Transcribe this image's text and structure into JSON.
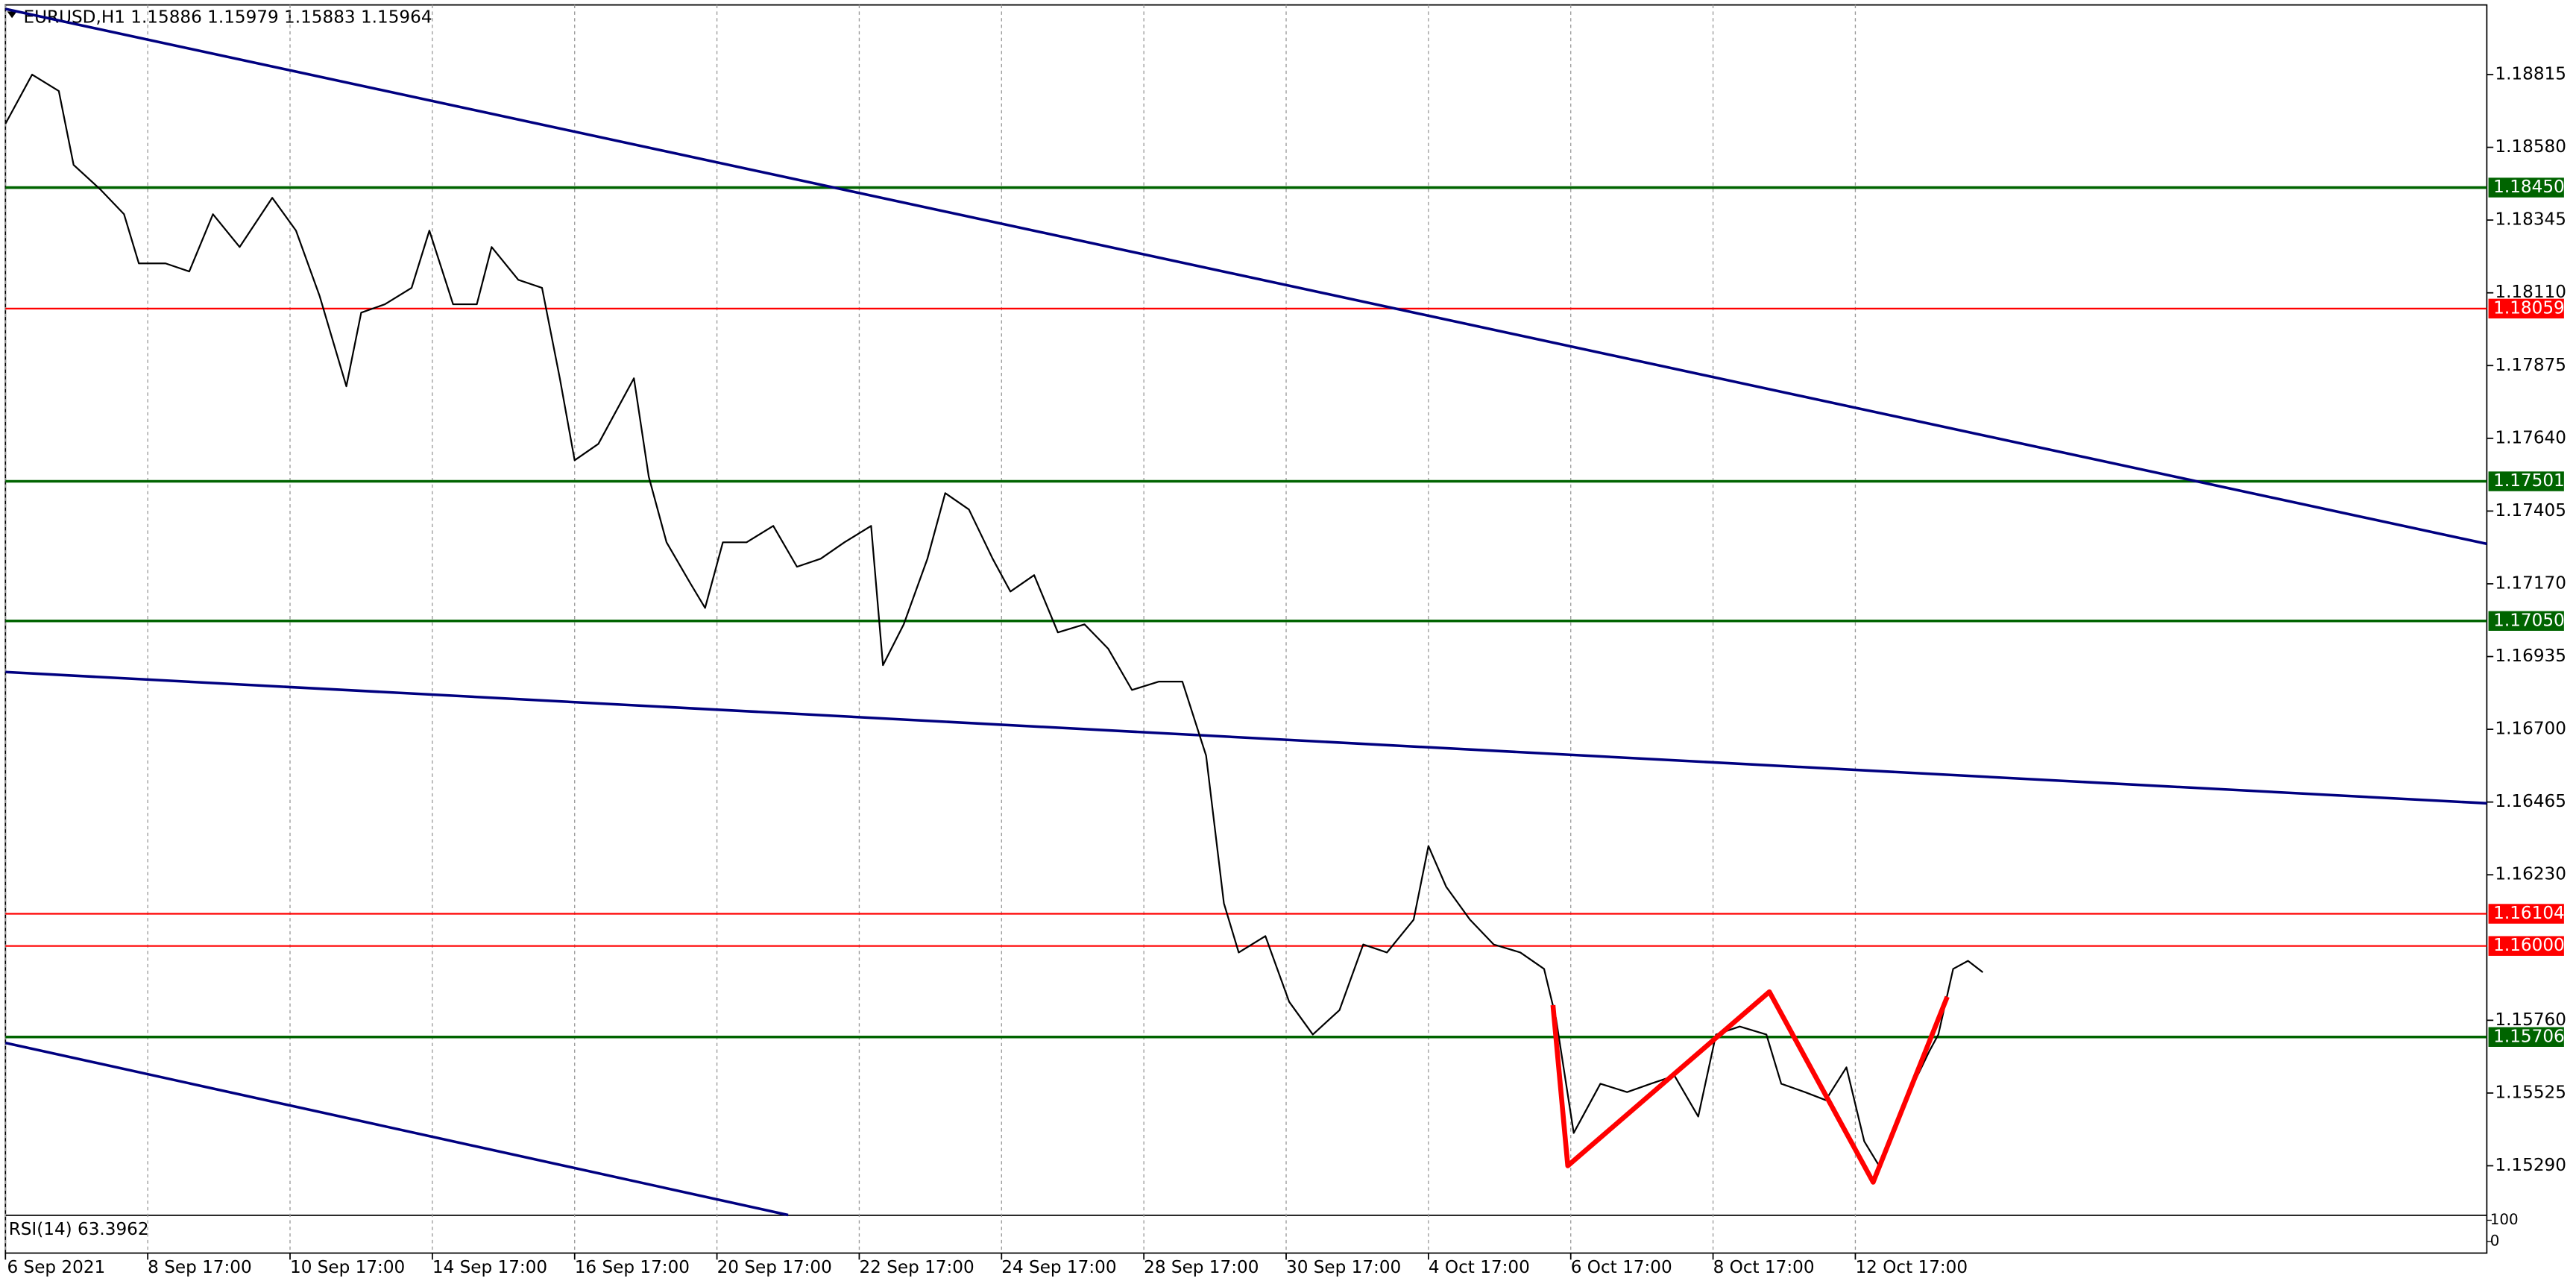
{
  "chart_data": {
    "type": "line",
    "title": "EURUSD,H1  1.15886 1.15979 1.15883 1.15964",
    "indicator": "RSI(14) 63.3962",
    "indicator_yticks": [
      100,
      0
    ],
    "xlim": [
      0,
      837
    ],
    "ylim": [
      1.1513,
      1.1904
    ],
    "grid": true,
    "xticks": [
      {
        "value": 0,
        "label": "6 Sep 2021"
      },
      {
        "value": 48,
        "label": "8 Sep 17:00"
      },
      {
        "value": 96,
        "label": "10 Sep 17:00"
      },
      {
        "value": 144,
        "label": "14 Sep 17:00"
      },
      {
        "value": 192,
        "label": "16 Sep 17:00"
      },
      {
        "value": 240,
        "label": "20 Sep 17:00"
      },
      {
        "value": 288,
        "label": "22 Sep 17:00"
      },
      {
        "value": 336,
        "label": "24 Sep 17:00"
      },
      {
        "value": 384,
        "label": "28 Sep 17:00"
      },
      {
        "value": 432,
        "label": "30 Sep 17:00"
      },
      {
        "value": 480,
        "label": "4 Oct 17:00"
      },
      {
        "value": 528,
        "label": "6 Oct 17:00"
      },
      {
        "value": 576,
        "label": "8 Oct 17:00"
      },
      {
        "value": 624,
        "label": "12 Oct 17:00"
      }
    ],
    "yticks": [
      1.18815,
      {
        "value": 1.1858,
        "label": "1.18580"
      },
      1.18345,
      {
        "value": 1.1811,
        "label": "1.18110"
      },
      1.17875,
      {
        "value": 1.1764,
        "label": "1.17640"
      },
      1.17405,
      {
        "value": 1.1717,
        "label": "1.17170"
      },
      1.16935,
      {
        "value": 1.167,
        "label": "1.16700"
      },
      1.16465,
      {
        "value": 1.1623,
        "label": "1.16230"
      },
      {
        "value": 1.1576,
        "label": "1.15760"
      },
      1.15525,
      {
        "value": 1.1529,
        "label": "1.15290"
      }
    ],
    "levels": [
      {
        "value": 1.1845,
        "label": "1.18450",
        "color": "#006400"
      },
      {
        "value": 1.18059,
        "label": "1.18059",
        "color": "#ff0000"
      },
      {
        "value": 1.17501,
        "label": "1.17501",
        "color": "#006400"
      },
      {
        "value": 1.1705,
        "label": "1.17050",
        "color": "#006400"
      },
      {
        "value": 1.16104,
        "label": "1.16104",
        "color": "#ff0000"
      },
      {
        "value": 1.16,
        "label": "1.16000",
        "color": "#ff0000"
      },
      {
        "value": 1.15706,
        "label": "1.15706",
        "color": "#006400"
      }
    ],
    "trendlines": [
      {
        "color": "#000080",
        "x": [
          0,
          837
        ],
        "values": [
          1.19027,
          1.17299
        ]
      },
      {
        "color": "#000080",
        "x": [
          0,
          837
        ],
        "values": [
          1.16885,
          1.16461
        ]
      },
      {
        "color": "#000080",
        "x": [
          0,
          264
        ],
        "values": [
          1.15687,
          1.15131
        ]
      }
    ],
    "pattern": {
      "color": "#ff0000",
      "x": [
        522,
        527,
        595,
        630,
        655
      ],
      "values": [
        1.15809,
        1.1529,
        1.15852,
        1.15237,
        1.15836
      ]
    },
    "series": [
      {
        "name": "EURUSD",
        "color": "#000000",
        "x": [
          0,
          9,
          18,
          23,
          32,
          40,
          45,
          54,
          62,
          70,
          79,
          90,
          98,
          106,
          115,
          120,
          128,
          137,
          143,
          151,
          159,
          164,
          173,
          181,
          187,
          192,
          200,
          212,
          217,
          223,
          231,
          236,
          242,
          250,
          259,
          267,
          275,
          283,
          292,
          296,
          303,
          311,
          317,
          325,
          333,
          339,
          347,
          355,
          364,
          372,
          380,
          389,
          397,
          405,
          411,
          416,
          425,
          433,
          441,
          450,
          458,
          466,
          475,
          480,
          486,
          494,
          502,
          511,
          519,
          523,
          529,
          538,
          547,
          555,
          563,
          571,
          577,
          585,
          594,
          599,
          607,
          614,
          621,
          627,
          632,
          641,
          649,
          652,
          657,
          662,
          667
        ],
        "values": [
          1.18656,
          1.18815,
          1.18762,
          1.18523,
          1.18444,
          1.18364,
          1.18205,
          1.18205,
          1.18179,
          1.18364,
          1.18258,
          1.18417,
          1.18311,
          1.18099,
          1.17808,
          1.18046,
          1.18073,
          1.18126,
          1.18311,
          1.18073,
          1.18073,
          1.18258,
          1.18152,
          1.18126,
          1.17834,
          1.17569,
          1.17622,
          1.17834,
          1.17516,
          1.17304,
          1.17172,
          1.17092,
          1.17304,
          1.17304,
          1.17357,
          1.17225,
          1.17251,
          1.17304,
          1.17357,
          1.16907,
          1.17039,
          1.17251,
          1.17463,
          1.1741,
          1.17251,
          1.17145,
          1.17198,
          1.17013,
          1.17039,
          1.1696,
          1.16827,
          1.16854,
          1.16854,
          1.16615,
          1.16138,
          1.15979,
          1.16032,
          1.1582,
          1.15714,
          1.15793,
          1.16005,
          1.15979,
          1.16085,
          1.16323,
          1.16191,
          1.16085,
          1.16005,
          1.15979,
          1.15926,
          1.15767,
          1.15396,
          1.15555,
          1.15528,
          1.15555,
          1.15581,
          1.15449,
          1.15714,
          1.1574,
          1.15714,
          1.15555,
          1.15528,
          1.15502,
          1.15608,
          1.15369,
          1.1529,
          1.15502,
          1.15661,
          1.15714,
          1.15926,
          1.15952,
          1.15915
        ]
      }
    ]
  }
}
